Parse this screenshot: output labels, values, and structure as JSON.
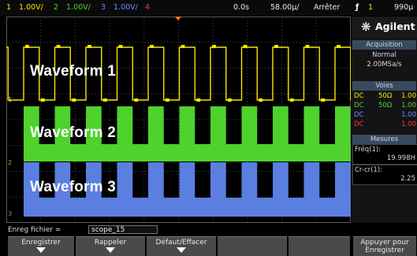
{
  "status_bar": {
    "ch1": {
      "num": "1",
      "scale": "1.00V/",
      "color": "#f4e800"
    },
    "ch2": {
      "num": "2",
      "scale": "1.00V/",
      "color": "#4fd22c"
    },
    "ch3": {
      "num": "3",
      "scale": "1.00V/",
      "color": "#6f8bff"
    },
    "ch4": {
      "num": "4",
      "color": "#ff3344"
    },
    "time_offset": "0.0s",
    "time_scale": "58.00µ/",
    "run_state": "Arrêter",
    "trigger_symbol": "ƒ",
    "trigger_source": "1",
    "trigger_level": "990µ"
  },
  "waveforms": [
    {
      "label": "Waveform 1",
      "color": "#f4e800"
    },
    {
      "label": "Waveform 2",
      "color": "#4fd22c"
    },
    {
      "label": "Waveform 3",
      "color": "#5a7fe0"
    }
  ],
  "side_panel": {
    "brand": "Agilent",
    "brand_icon": "agilent-spark-icon",
    "acquisition": {
      "title": "Acquisition",
      "mode": "Normal",
      "rate": "2.00MSa/s"
    },
    "voies": {
      "title": "Voies",
      "rows": [
        {
          "coupling": "DC",
          "impedance": "50Ω",
          "probe": "1.00",
          "color": "#f4e800"
        },
        {
          "coupling": "DC",
          "impedance": "50Ω",
          "probe": "1.00",
          "color": "#4fd22c"
        },
        {
          "coupling": "DC",
          "impedance": "",
          "probe": "1.00",
          "color": "#6f8bff"
        },
        {
          "coupling": "DC",
          "impedance": "",
          "probe": "1.00",
          "color": "#ff3344"
        }
      ]
    },
    "mesures": {
      "title": "Mesures",
      "freq_label": "Fréq(1):",
      "freq_value": "19.998H",
      "crcr_label": "Cr-cr(1):",
      "crcr_value": "2.25"
    }
  },
  "bottom": {
    "enreg_label": "Enreg fichier =",
    "enreg_value": "scope_15",
    "softkeys": [
      {
        "label": "Enregistrer"
      },
      {
        "label": "Rappeler"
      },
      {
        "label": "Défaut/Effacer"
      },
      {
        "label": "Appuyer pour",
        "label2": "Enregistrer"
      }
    ]
  }
}
